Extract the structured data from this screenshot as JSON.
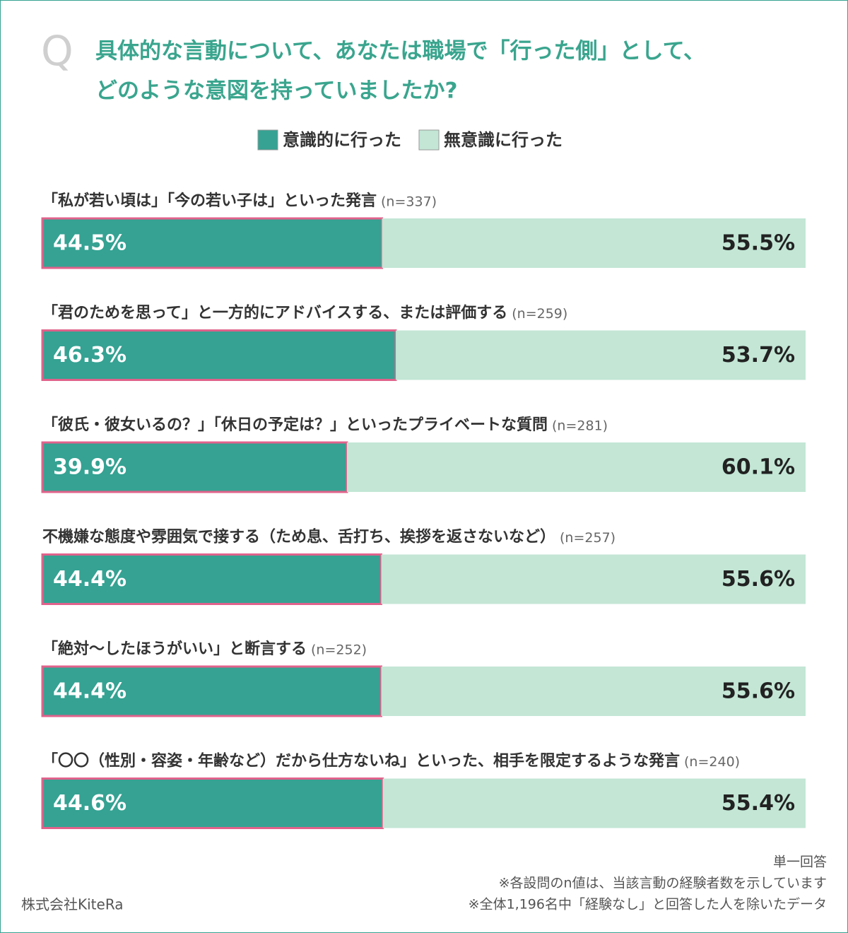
{
  "chart_data": {
    "type": "stacked-bar",
    "question_mark": "Q",
    "title": [
      "具体的な言動について、あなたは職場で「行った側」として、",
      "どのような意図を持っていましたか?"
    ],
    "categories": [
      "「私が若い頃は」「今の若い子は」といった発言",
      "「君のためを思って」と一方的にアドバイスする、または評価する",
      "「彼氏・彼女いるの？」「休日の予定は？」といったプライベートな質問",
      "不機嫌な態度や雰囲気で接する（ため息、舌打ち、挨拶を返さないなど）",
      "「絶対〜したほうがいい」と断言する",
      "「〇〇（性別・容姿・年齢など）だから仕方ないね」といった、相手を限定するような発言"
    ],
    "category_notes": [
      "(n=337)",
      "(n=259)",
      "(n=281)",
      "(n=257)",
      "(n=252)",
      "(n=240)"
    ],
    "series": [
      {
        "name": "意識的に行った",
        "color": "#35a293",
        "values": [
          44.5,
          46.3,
          39.9,
          44.4,
          44.4,
          44.6
        ],
        "value_labels": [
          "44.5%",
          "46.3%",
          "39.9%",
          "44.4%",
          "44.4%",
          "44.6%"
        ]
      },
      {
        "name": "無意識に行った",
        "color": "#c3e6d5",
        "values": [
          55.5,
          53.7,
          60.1,
          55.6,
          55.6,
          55.4
        ],
        "value_labels": [
          "55.5%",
          "53.7%",
          "60.1%",
          "55.6%",
          "55.6%",
          "55.4%"
        ]
      }
    ],
    "xlim": [
      0,
      100
    ]
  },
  "footer": {
    "notes": [
      "単一回答",
      "※各設問のn値は、当該言動の経験者数を示しています",
      "※全体1,196名中「経験なし」と回答した人を除いたデータ"
    ],
    "source": "株式会社KiteRa"
  }
}
